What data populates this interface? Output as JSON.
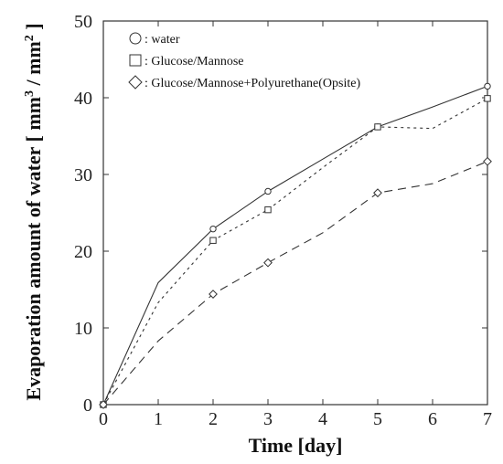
{
  "chart_data": {
    "type": "line",
    "xlabel": "Time [day]",
    "ylabel_prefix": "Evaporation amount of water [ mm",
    "ylabel_mid": " / mm",
    "ylabel_suffix": " ]",
    "ylabel_sup": "3",
    "ylabel_sup2": "2",
    "xlim": [
      0,
      7
    ],
    "ylim": [
      0,
      50
    ],
    "xticks": [
      0,
      1,
      2,
      3,
      4,
      5,
      6,
      7
    ],
    "yticks": [
      0,
      10,
      20,
      30,
      40,
      50
    ],
    "grid": false,
    "legend_position": "top-left",
    "series": [
      {
        "name": ": water",
        "marker": "circle",
        "dash": "solid",
        "x": [
          0,
          1,
          2,
          3,
          4,
          5,
          6,
          7
        ],
        "y": [
          0,
          15.9,
          22.9,
          27.8,
          32.0,
          36.2,
          38.8,
          41.5
        ],
        "marked": [
          true,
          false,
          true,
          true,
          false,
          true,
          false,
          true
        ]
      },
      {
        "name": ": Glucose/Mannose",
        "marker": "square",
        "dash": "short",
        "x": [
          0,
          1,
          2,
          3,
          4,
          5,
          6,
          7
        ],
        "y": [
          0,
          13.3,
          21.4,
          25.4,
          30.9,
          36.2,
          36.0,
          39.9
        ],
        "marked": [
          true,
          false,
          true,
          true,
          false,
          true,
          false,
          true
        ]
      },
      {
        "name": ": Glucose/Mannose+Polyurethane(Opsite)",
        "marker": "diamond",
        "dash": "long",
        "x": [
          0,
          1,
          2,
          3,
          4,
          5,
          6,
          7
        ],
        "y": [
          0,
          8.3,
          14.4,
          18.5,
          22.4,
          27.6,
          28.8,
          31.7
        ],
        "marked": [
          true,
          false,
          true,
          true,
          false,
          true,
          false,
          true
        ]
      }
    ]
  }
}
